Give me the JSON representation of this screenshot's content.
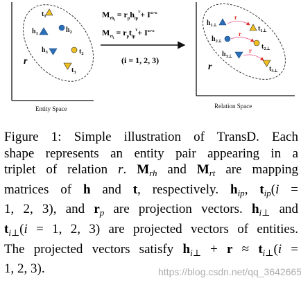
{
  "figure": {
    "left_panel_label": "Entity Space",
    "right_panel_label": "Relation Space",
    "relation_symbol": "r",
    "equation_1": {
      "lhs": "M",
      "lhs_sub": "rh",
      "lhs_sub2": "i",
      "rhs": "= r",
      "rhs_sub": "p",
      "rhs_mid": "h",
      "rhs_mid_sub": "ip",
      "rhs_sup": "T",
      "rhs_tail": "+ I",
      "tail_sup": "m×n"
    },
    "equation_2": {
      "lhs": "M",
      "lhs_sub": "rt",
      "lhs_sub2": "i",
      "rhs": "= r",
      "rhs_sub": "p",
      "rhs_mid": "t",
      "rhs_mid_sub": "ip",
      "rhs_sup": "T",
      "rhs_tail": "+ I",
      "tail_sup": "m×n"
    },
    "index_range": "(i = 1, 2, 3)",
    "entity_labels": {
      "t1": {
        "base": "t",
        "sub": "1"
      },
      "h1": {
        "base": "h",
        "sub": "1"
      },
      "h2": {
        "base": "h",
        "sub": "2"
      },
      "h3": {
        "base": "h",
        "sub": "3"
      },
      "t2": {
        "base": "t",
        "sub": "2"
      },
      "t3": {
        "base": "t",
        "sub": "3"
      }
    },
    "projected_labels": {
      "h1p": {
        "base": "h",
        "sub": "1⊥"
      },
      "t1p": {
        "base": "t",
        "sub": "1⊥"
      },
      "h2p": {
        "base": "h",
        "sub": "2⊥"
      },
      "t2p": {
        "base": "t",
        "sub": "2⊥"
      },
      "h3p": {
        "base": "h",
        "sub": "3⊥"
      },
      "t3p": {
        "base": "t",
        "sub": "3⊥"
      }
    },
    "colors": {
      "blue": "#2a6fb8",
      "yellow": "#f0c020",
      "arrow_red": "#e0302a",
      "pink_line": "#e86a9a"
    }
  },
  "caption": {
    "line1": "Figure 1:  Simple illustration of TransD. Each",
    "line2": "shape represents an entity pair appearing in a",
    "line3_a": "triplet of relation ",
    "line3_r": "r",
    "line3_b": ".  ",
    "line3_M1": "M",
    "line3_M1sub": "rh",
    "line3_c": " and ",
    "line3_M2": "M",
    "line3_M2sub": "rt",
    "line3_d": " are mapping",
    "line4_a": "matrices of ",
    "line4_h": "h",
    "line4_b": " and ",
    "line4_t": "t",
    "line4_c": ", respectively.  ",
    "line4_hip": "h",
    "line4_hipsub": "ip",
    "line4_d": ", ",
    "line4_tip": "t",
    "line4_tipsub": "ip",
    "line4_e": "(",
    "line4_i": "i",
    "line4_f": " =",
    "line5_a": "1, 2, 3), and ",
    "line5_rp": "r",
    "line5_rpsub": "p",
    "line5_b": " are projection vectors.  ",
    "line5_hi": "h",
    "line5_hisub": "i⊥",
    "line5_c": " and",
    "line6_t": "t",
    "line6_tsub": "i⊥",
    "line6_a": "(",
    "line6_i": "i",
    "line6_b": " = 1, 2, 3) are projected vectors of entities.",
    "line7": "The projected vectors satisfy ",
    "line7_h": "h",
    "line7_hsub": "i⊥",
    "line7_plus": " + ",
    "line7_r": "r",
    "line7_approx": " ≈ ",
    "line7_t": "t",
    "line7_tsub": "i⊥",
    "line7_open": "(",
    "line7_i": "i",
    "line7_eq": " =",
    "line8": "1, 2, 3)."
  },
  "watermark": "https://blog.csdn.net/qq_36426650"
}
